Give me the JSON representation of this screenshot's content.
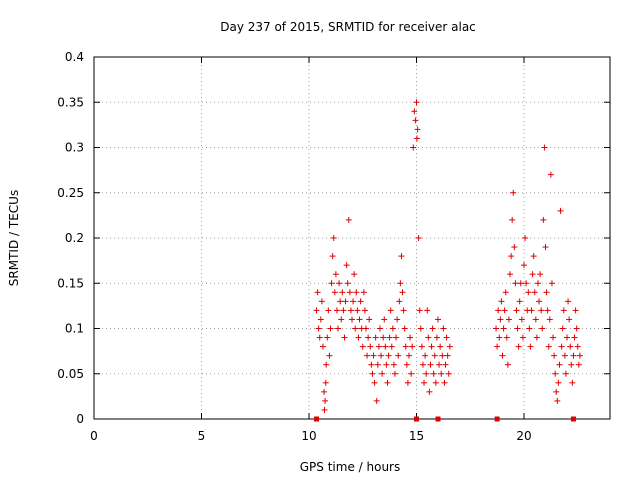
{
  "chart_data": {
    "type": "scatter",
    "title": "Day 237 of 2015, SRMTID for receiver alac",
    "xlabel": "GPS time / hours",
    "ylabel": "SRMTID / TECUs",
    "xlim": [
      0,
      24
    ],
    "ylim": [
      0,
      0.4
    ],
    "xticks": [
      0,
      5,
      10,
      15,
      20
    ],
    "yticks": [
      0,
      0.05,
      0.1,
      0.15,
      0.2,
      0.25,
      0.3,
      0.35,
      0.4
    ],
    "xtick_labels": [
      "0",
      "5",
      "10",
      "15",
      "20"
    ],
    "ytick_labels": [
      "0",
      "0.05",
      "0.1",
      "0.15",
      "0.2",
      "0.25",
      "0.3",
      "0.35",
      "0.4"
    ],
    "grid": true,
    "marker": "+",
    "marker_color": "#e00000",
    "series": [
      {
        "name": "SRMTID",
        "points": [
          [
            10.35,
            0.12
          ],
          [
            10.4,
            0.14
          ],
          [
            10.45,
            0.1
          ],
          [
            10.5,
            0.09
          ],
          [
            10.55,
            0.11
          ],
          [
            10.6,
            0.13
          ],
          [
            10.65,
            0.08
          ],
          [
            10.7,
            0.03
          ],
          [
            10.72,
            0.01
          ],
          [
            10.75,
            0.02
          ],
          [
            10.78,
            0.04
          ],
          [
            10.8,
            0.06
          ],
          [
            10.85,
            0.09
          ],
          [
            10.9,
            0.12
          ],
          [
            10.95,
            0.07
          ],
          [
            11.0,
            0.1
          ],
          [
            11.05,
            0.15
          ],
          [
            11.1,
            0.18
          ],
          [
            11.15,
            0.2
          ],
          [
            11.2,
            0.14
          ],
          [
            11.25,
            0.16
          ],
          [
            11.3,
            0.12
          ],
          [
            11.35,
            0.1
          ],
          [
            11.4,
            0.15
          ],
          [
            11.45,
            0.13
          ],
          [
            11.5,
            0.11
          ],
          [
            11.55,
            0.14
          ],
          [
            11.6,
            0.12
          ],
          [
            11.65,
            0.09
          ],
          [
            11.7,
            0.13
          ],
          [
            11.75,
            0.17
          ],
          [
            11.8,
            0.15
          ],
          [
            11.85,
            0.22
          ],
          [
            11.9,
            0.14
          ],
          [
            11.95,
            0.12
          ],
          [
            12.0,
            0.11
          ],
          [
            12.05,
            0.13
          ],
          [
            12.1,
            0.16
          ],
          [
            12.15,
            0.1
          ],
          [
            12.2,
            0.14
          ],
          [
            12.25,
            0.12
          ],
          [
            12.3,
            0.09
          ],
          [
            12.35,
            0.11
          ],
          [
            12.4,
            0.13
          ],
          [
            12.45,
            0.1
          ],
          [
            12.5,
            0.08
          ],
          [
            12.55,
            0.14
          ],
          [
            12.6,
            0.12
          ],
          [
            12.65,
            0.1
          ],
          [
            12.7,
            0.07
          ],
          [
            12.75,
            0.09
          ],
          [
            12.8,
            0.11
          ],
          [
            12.85,
            0.08
          ],
          [
            12.9,
            0.06
          ],
          [
            12.95,
            0.05
          ],
          [
            13.0,
            0.07
          ],
          [
            13.05,
            0.04
          ],
          [
            13.1,
            0.09
          ],
          [
            13.15,
            0.02
          ],
          [
            13.2,
            0.06
          ],
          [
            13.25,
            0.08
          ],
          [
            13.3,
            0.1
          ],
          [
            13.35,
            0.07
          ],
          [
            13.4,
            0.05
          ],
          [
            13.45,
            0.09
          ],
          [
            13.5,
            0.11
          ],
          [
            13.55,
            0.08
          ],
          [
            13.6,
            0.06
          ],
          [
            13.65,
            0.04
          ],
          [
            13.7,
            0.07
          ],
          [
            13.75,
            0.09
          ],
          [
            13.8,
            0.12
          ],
          [
            13.85,
            0.08
          ],
          [
            13.9,
            0.1
          ],
          [
            13.95,
            0.06
          ],
          [
            14.0,
            0.05
          ],
          [
            14.05,
            0.09
          ],
          [
            14.1,
            0.11
          ],
          [
            14.15,
            0.07
          ],
          [
            14.2,
            0.13
          ],
          [
            14.25,
            0.15
          ],
          [
            14.3,
            0.18
          ],
          [
            14.35,
            0.14
          ],
          [
            14.4,
            0.12
          ],
          [
            14.45,
            0.1
          ],
          [
            14.5,
            0.08
          ],
          [
            14.55,
            0.06
          ],
          [
            14.6,
            0.04
          ],
          [
            14.65,
            0.07
          ],
          [
            14.7,
            0.09
          ],
          [
            14.75,
            0.05
          ],
          [
            14.8,
            0.08
          ],
          [
            14.85,
            0.3
          ],
          [
            14.9,
            0.34
          ],
          [
            14.95,
            0.33
          ],
          [
            15.0,
            0.35
          ],
          [
            15.02,
            0.31
          ],
          [
            15.05,
            0.32
          ],
          [
            15.1,
            0.2
          ],
          [
            15.15,
            0.12
          ],
          [
            15.2,
            0.1
          ],
          [
            15.25,
            0.08
          ],
          [
            15.3,
            0.06
          ],
          [
            15.35,
            0.04
          ],
          [
            15.4,
            0.07
          ],
          [
            15.45,
            0.05
          ],
          [
            15.5,
            0.12
          ],
          [
            15.55,
            0.09
          ],
          [
            15.6,
            0.03
          ],
          [
            15.65,
            0.06
          ],
          [
            15.7,
            0.08
          ],
          [
            15.75,
            0.1
          ],
          [
            15.8,
            0.05
          ],
          [
            15.85,
            0.07
          ],
          [
            15.9,
            0.04
          ],
          [
            15.95,
            0.09
          ],
          [
            16.0,
            0.11
          ],
          [
            16.05,
            0.06
          ],
          [
            16.1,
            0.08
          ],
          [
            16.15,
            0.05
          ],
          [
            16.2,
            0.07
          ],
          [
            16.25,
            0.1
          ],
          [
            16.3,
            0.04
          ],
          [
            16.35,
            0.06
          ],
          [
            16.4,
            0.09
          ],
          [
            16.45,
            0.07
          ],
          [
            16.5,
            0.05
          ],
          [
            16.55,
            0.08
          ],
          [
            18.7,
            0.1
          ],
          [
            18.75,
            0.08
          ],
          [
            18.8,
            0.12
          ],
          [
            18.85,
            0.09
          ],
          [
            18.9,
            0.11
          ],
          [
            18.95,
            0.13
          ],
          [
            19.0,
            0.07
          ],
          [
            19.05,
            0.1
          ],
          [
            19.1,
            0.12
          ],
          [
            19.15,
            0.14
          ],
          [
            19.2,
            0.09
          ],
          [
            19.25,
            0.06
          ],
          [
            19.3,
            0.11
          ],
          [
            19.35,
            0.16
          ],
          [
            19.4,
            0.18
          ],
          [
            19.45,
            0.22
          ],
          [
            19.5,
            0.25
          ],
          [
            19.55,
            0.19
          ],
          [
            19.6,
            0.15
          ],
          [
            19.65,
            0.12
          ],
          [
            19.7,
            0.1
          ],
          [
            19.75,
            0.08
          ],
          [
            19.8,
            0.13
          ],
          [
            19.85,
            0.15
          ],
          [
            19.9,
            0.11
          ],
          [
            19.95,
            0.09
          ],
          [
            20.0,
            0.17
          ],
          [
            20.05,
            0.2
          ],
          [
            20.1,
            0.15
          ],
          [
            20.15,
            0.12
          ],
          [
            20.2,
            0.14
          ],
          [
            20.25,
            0.1
          ],
          [
            20.3,
            0.08
          ],
          [
            20.35,
            0.12
          ],
          [
            20.4,
            0.16
          ],
          [
            20.45,
            0.18
          ],
          [
            20.5,
            0.14
          ],
          [
            20.55,
            0.11
          ],
          [
            20.6,
            0.09
          ],
          [
            20.65,
            0.15
          ],
          [
            20.7,
            0.13
          ],
          [
            20.75,
            0.16
          ],
          [
            20.8,
            0.12
          ],
          [
            20.85,
            0.1
          ],
          [
            20.9,
            0.22
          ],
          [
            20.95,
            0.3
          ],
          [
            21.0,
            0.19
          ],
          [
            21.05,
            0.14
          ],
          [
            21.1,
            0.12
          ],
          [
            21.15,
            0.08
          ],
          [
            21.2,
            0.11
          ],
          [
            21.25,
            0.27
          ],
          [
            21.3,
            0.15
          ],
          [
            21.35,
            0.09
          ],
          [
            21.4,
            0.07
          ],
          [
            21.45,
            0.05
          ],
          [
            21.5,
            0.03
          ],
          [
            21.55,
            0.02
          ],
          [
            21.6,
            0.04
          ],
          [
            21.65,
            0.06
          ],
          [
            21.7,
            0.23
          ],
          [
            21.75,
            0.08
          ],
          [
            21.8,
            0.1
          ],
          [
            21.85,
            0.12
          ],
          [
            21.9,
            0.07
          ],
          [
            21.95,
            0.05
          ],
          [
            22.0,
            0.09
          ],
          [
            22.05,
            0.13
          ],
          [
            22.1,
            0.11
          ],
          [
            22.15,
            0.08
          ],
          [
            22.2,
            0.06
          ],
          [
            22.25,
            0.04
          ],
          [
            22.3,
            0.07
          ],
          [
            22.35,
            0.09
          ],
          [
            22.4,
            0.12
          ],
          [
            22.45,
            0.1
          ],
          [
            22.5,
            0.08
          ],
          [
            22.55,
            0.06
          ],
          [
            22.6,
            0.07
          ]
        ]
      }
    ],
    "zero_markers_x": [
      10.35,
      15.0,
      16.0,
      18.75,
      22.3
    ]
  }
}
